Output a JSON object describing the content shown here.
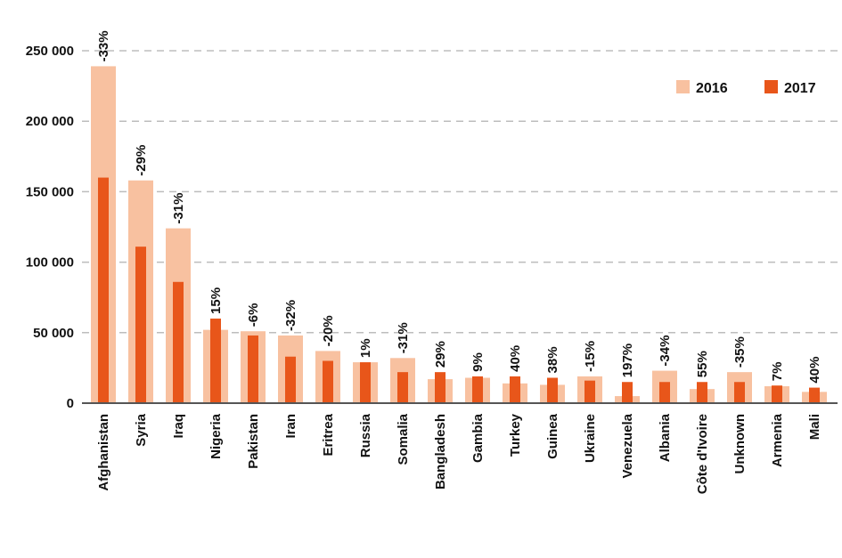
{
  "chart_data": {
    "type": "bar",
    "categories": [
      "Afghanistan",
      "Syria",
      "Iraq",
      "Nigeria",
      "Pakistan",
      "Iran",
      "Eritrea",
      "Russia",
      "Somalia",
      "Bangladesh",
      "Gambia",
      "Turkey",
      "Guinea",
      "Ukraine",
      "Venezuela",
      "Albania",
      "Côte d'Ivoire",
      "Unknown",
      "Armenia",
      "Mali"
    ],
    "series": [
      {
        "name": "2016",
        "color": "#f8c1a0",
        "values": [
          239000,
          158000,
          124000,
          52000,
          51000,
          48000,
          37000,
          29000,
          32000,
          17000,
          18000,
          14000,
          13000,
          19000,
          5000,
          23000,
          10000,
          22000,
          12000,
          8000
        ]
      },
      {
        "name": "2017",
        "color": "#e8561a",
        "values": [
          160000,
          111000,
          86000,
          60000,
          48000,
          33000,
          30000,
          29000,
          22000,
          22000,
          19000,
          19000,
          18000,
          16000,
          15000,
          15000,
          15000,
          15000,
          12500,
          11000
        ]
      }
    ],
    "change_labels": [
      "-33%",
      "-29%",
      "-31%",
      "15%",
      "-6%",
      "-32%",
      "-20%",
      "1%",
      "-31%",
      "29%",
      "9%",
      "40%",
      "38%",
      "-15%",
      "197%",
      "-34%",
      "55%",
      "-35%",
      "7%",
      "40%"
    ],
    "yticks": [
      0,
      50000,
      100000,
      150000,
      200000,
      250000
    ],
    "ytick_labels": [
      "0",
      "50 000",
      "100 000",
      "150 000",
      "200 000",
      "250 000"
    ],
    "ylim": [
      0,
      250000
    ],
    "grid": true,
    "legend_position": "top-right"
  }
}
